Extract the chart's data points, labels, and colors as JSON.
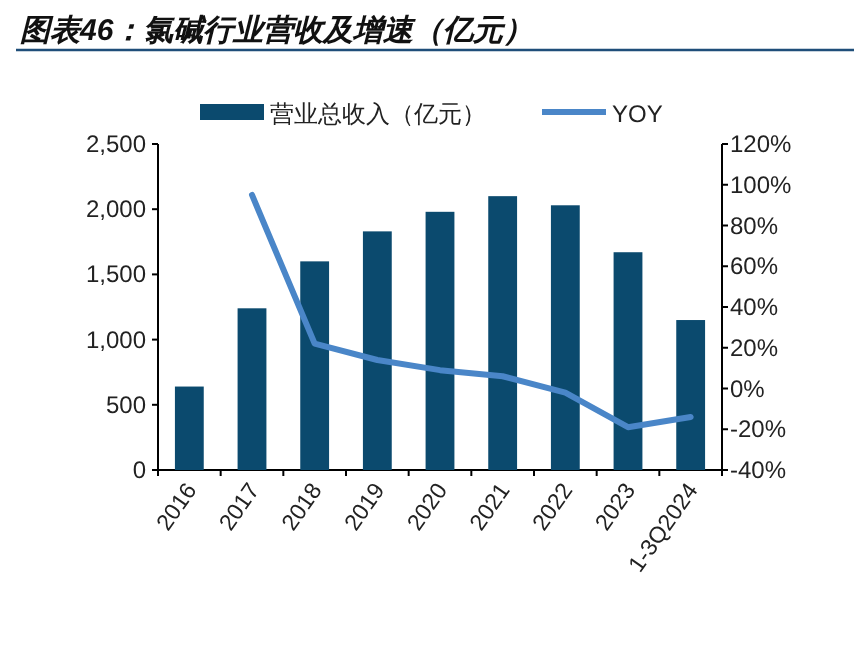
{
  "chart_data": {
    "type": "bar",
    "title": "图表46：氯碱行业营收及增速（亿元）",
    "categories": [
      "2016",
      "2017",
      "2018",
      "2019",
      "2020",
      "2021",
      "2022",
      "2023",
      "1-3Q2024"
    ],
    "series": [
      {
        "name": "营业总收入（亿元）",
        "color": "#0b4a6e",
        "values": [
          640,
          1240,
          1600,
          1830,
          1980,
          2100,
          2030,
          1670,
          1150
        ]
      },
      {
        "name": "YOY",
        "type": "line",
        "axis": "y2",
        "color": "#4a86c8",
        "values": [
          null,
          95,
          22,
          14,
          9,
          6,
          -2,
          -19,
          -14
        ]
      }
    ],
    "ylim": [
      0,
      2500
    ],
    "yticks": [
      0,
      {
        "value": 500,
        "label": "500"
      },
      {
        "value": 1000,
        "label": "1,000"
      },
      {
        "value": 1500,
        "label": "1,500"
      },
      {
        "value": 2000,
        "label": "2,000"
      },
      {
        "value": 2500,
        "label": "2,500"
      }
    ],
    "y2lim": [
      -40,
      120
    ],
    "y2ticks": [
      {
        "value": -40,
        "label": "-40%"
      },
      {
        "value": -20,
        "label": "-20%"
      },
      {
        "value": 0,
        "label": "0%"
      },
      {
        "value": 20,
        "label": "20%"
      },
      {
        "value": 40,
        "label": "40%"
      },
      {
        "value": 60,
        "label": "60%"
      },
      {
        "value": 80,
        "label": "80%"
      },
      {
        "value": 100,
        "label": "100%"
      },
      {
        "value": 120,
        "label": "120%"
      }
    ],
    "legend": "top",
    "grid": false,
    "line_style": "solid",
    "marker": "none"
  }
}
